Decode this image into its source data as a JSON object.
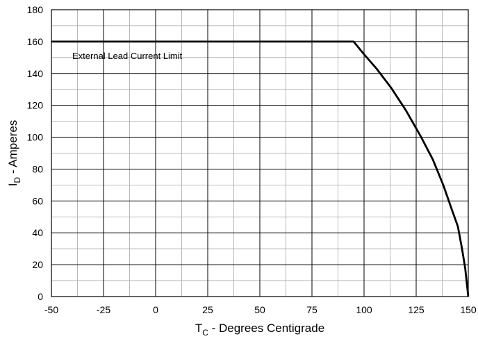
{
  "chart_data": {
    "type": "line",
    "xlabel": {
      "main": "T",
      "sub": "C",
      "rest": " - Degrees Centigrade"
    },
    "ylabel": {
      "main": "I",
      "sub": "D",
      "rest": " - Amperes"
    },
    "xlim": [
      -50,
      150
    ],
    "ylim": [
      0,
      180
    ],
    "x_ticks": [
      -50,
      -25,
      0,
      25,
      50,
      75,
      100,
      125,
      150
    ],
    "y_ticks": [
      0,
      20,
      40,
      60,
      80,
      100,
      120,
      140,
      160,
      180
    ],
    "x_minor_step": 12.5,
    "y_minor_step": 10,
    "grid": true,
    "annotation": {
      "text": "External Lead Current Limit",
      "x": -40,
      "y": 149
    },
    "series": [
      {
        "x": [
          -50,
          95,
          100,
          106,
          113,
          120,
          127,
          133,
          138,
          142,
          145,
          147,
          148.5,
          149.5,
          150
        ],
        "y": [
          160,
          160,
          152,
          143,
          131,
          117,
          101,
          86,
          70,
          55,
          44,
          30,
          18,
          6,
          0
        ]
      }
    ]
  }
}
